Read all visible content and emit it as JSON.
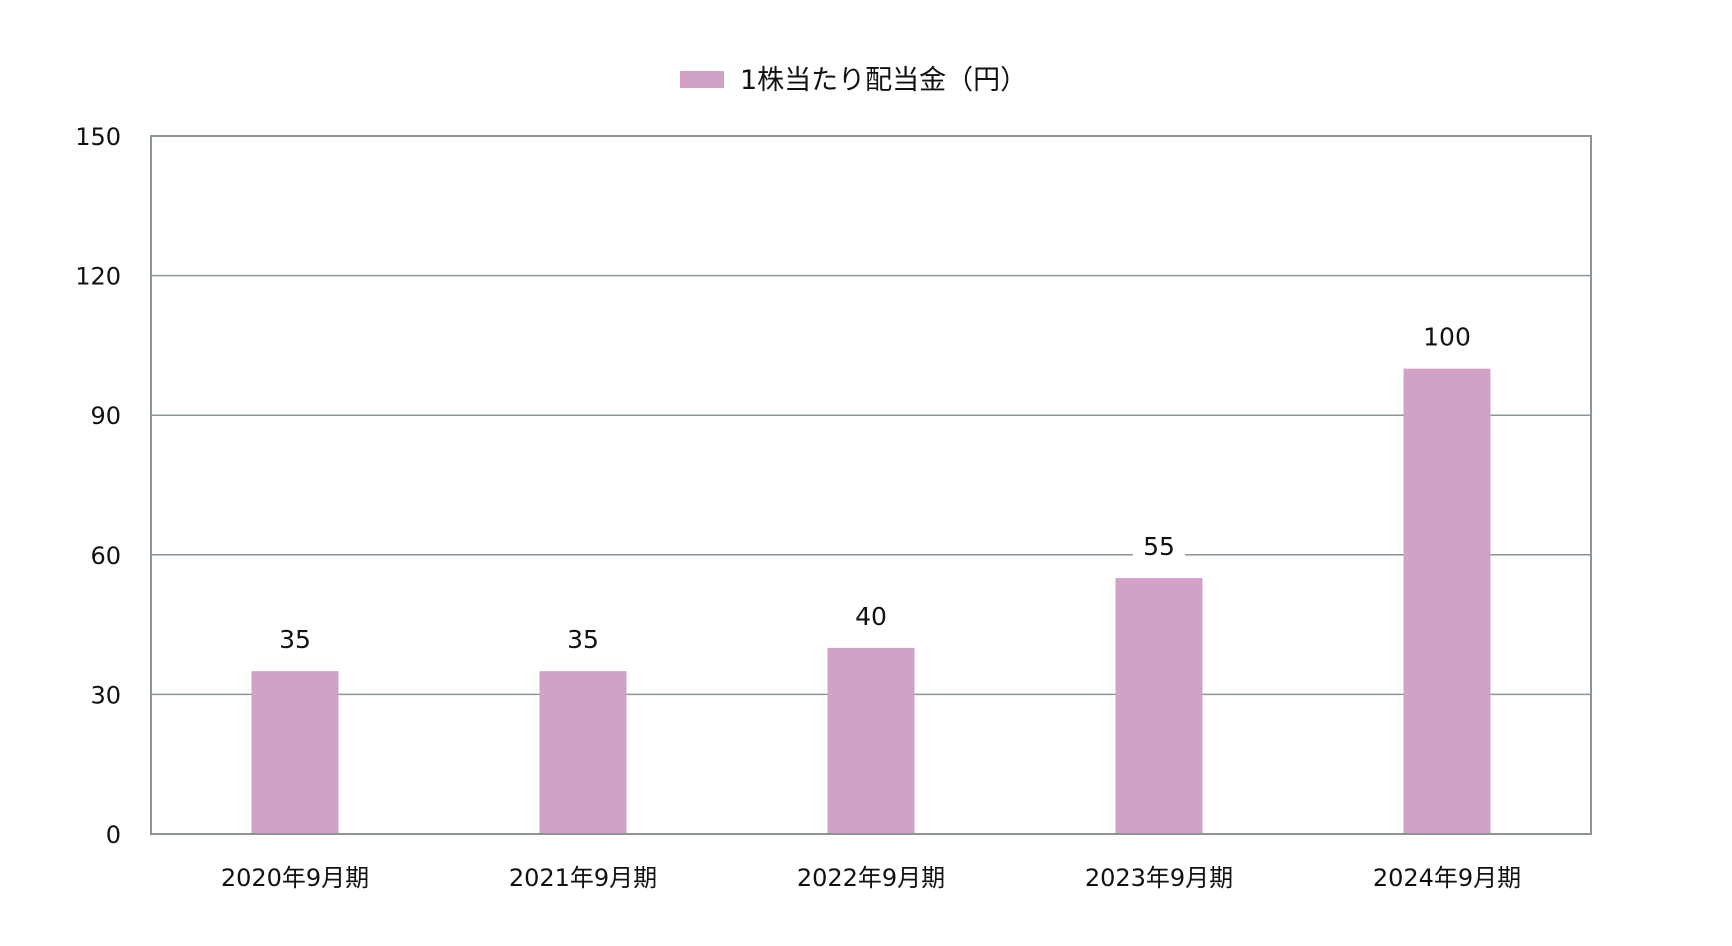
{
  "colors": {
    "bar": "#d1a1c8",
    "grid": "#8a9696",
    "frame": "#8a9696",
    "text": "#111111",
    "background": "#ffffff"
  },
  "chart_data": {
    "type": "bar",
    "categories": [
      "2020年9月期",
      "2021年9月期",
      "2022年9月期",
      "2023年9月期",
      "2024年9月期"
    ],
    "series": [
      {
        "name": "1株当たり配当金（円）",
        "values": [
          35,
          35,
          40,
          55,
          100
        ]
      }
    ],
    "data_labels": [
      "35",
      "35",
      "40",
      "55",
      "100"
    ],
    "y_ticks": [
      0,
      30,
      60,
      90,
      120,
      150
    ],
    "y_tick_labels": [
      "0",
      "30",
      "60",
      "90",
      "120",
      "150"
    ],
    "ylim": [
      0,
      150
    ],
    "title": "",
    "xlabel": "",
    "ylabel": "",
    "grid": true,
    "legend_position": "top-center"
  }
}
